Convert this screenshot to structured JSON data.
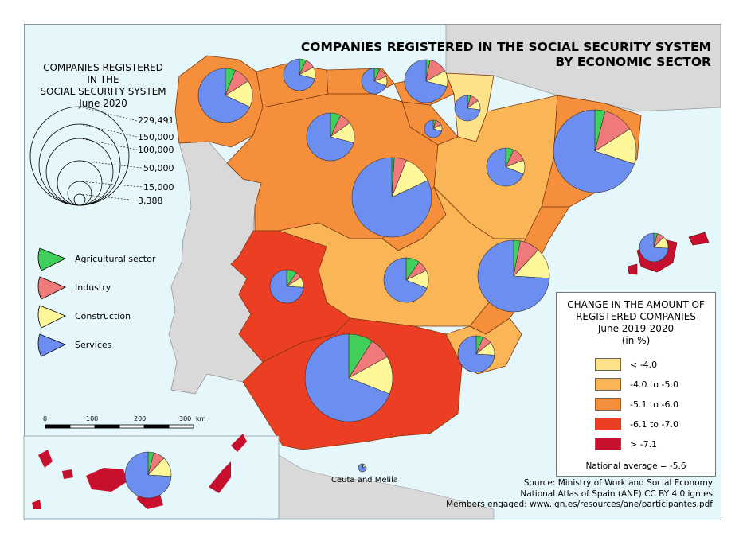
{
  "title": {
    "line1": "COMPANIES REGISTERED IN THE SOCIAL SECURITY SYSTEM",
    "line2": "BY ECONOMIC SECTOR"
  },
  "size_legend": {
    "title_lines": [
      "COMPANIES REGISTERED",
      "IN THE",
      "SOCIAL SECURITY SYSTEM",
      "June 2020"
    ],
    "values": [
      "229,491",
      "150,000",
      "100,000",
      "50,000",
      "15,000",
      "3,388"
    ]
  },
  "sectors": [
    {
      "label": "Agricultural sector",
      "color": "#3fcf5a"
    },
    {
      "label": "Industry",
      "color": "#f07a7a"
    },
    {
      "label": "Construction",
      "color": "#fdf79a"
    },
    {
      "label": "Services",
      "color": "#6b8ef0"
    }
  ],
  "choropleth_legend": {
    "title_lines": [
      "CHANGE IN THE AMOUNT OF",
      "REGISTERED COMPANIES",
      "June 2019-2020",
      "(in %)"
    ],
    "classes": [
      {
        "label": "< -4.0",
        "color": "#fde28a"
      },
      {
        "label": "-4.0 to -5.0",
        "color": "#f9b556"
      },
      {
        "label": "-5.1 to -6.0",
        "color": "#f58f3b"
      },
      {
        "label": "-6.1 to -7.0",
        "color": "#ec3e23"
      },
      {
        "label": "> -7.1",
        "color": "#c8102e"
      }
    ],
    "national_average": "National average = -5.6"
  },
  "scale_bar": {
    "ticks": [
      "0",
      "100",
      "200",
      "300"
    ],
    "unit": "km"
  },
  "ceuta_label": "Ceuta and Melila",
  "credits": {
    "source": "Source: Ministry of Work and Social Economy",
    "atlas": "National Atlas of Spain (ANE) CC BY 4.0 ign.es",
    "members": "Members engaged: www.ign.es/resources/ane/participantes.pdf"
  },
  "map_colors": {
    "sea": "#e6f7fb",
    "portugal_france": "#d9d9d9"
  }
}
